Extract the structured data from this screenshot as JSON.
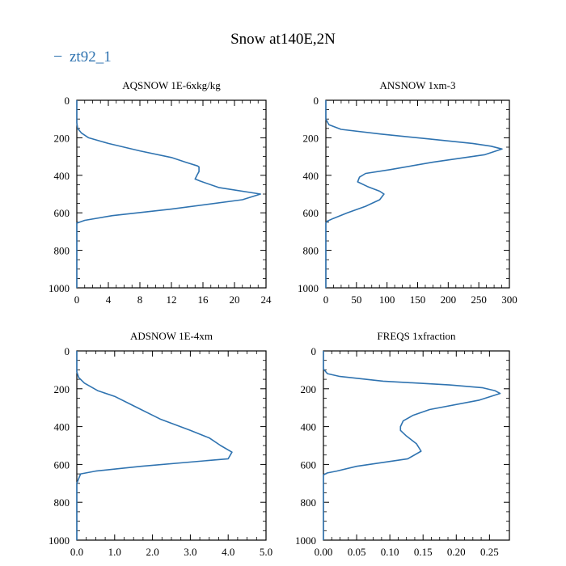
{
  "figure": {
    "title": "Snow at140E,2N",
    "legend_label": "zt92_1",
    "legend_dash": "−",
    "line_color": "#2f73b0"
  },
  "chart_data": [
    {
      "type": "line",
      "title": "AQSNOW  1E-6xkg/kg",
      "xlim": [
        0,
        24
      ],
      "ylim": [
        1000,
        0
      ],
      "xticks": [
        "0",
        "4",
        "8",
        "12",
        "16",
        "20",
        "24"
      ],
      "yticks": [
        "0",
        "200",
        "400",
        "600",
        "800",
        "1000"
      ],
      "series": [
        {
          "name": "zt92_1",
          "x": [
            0,
            0,
            0.1,
            0.6,
            1.5,
            4,
            8,
            12,
            13.8,
            15.3,
            15.5,
            15.5,
            15.3,
            15.0,
            15.6,
            18,
            23.3,
            21,
            12,
            4.5,
            1.0,
            0,
            0
          ],
          "y": [
            0,
            120,
            150,
            175,
            200,
            230,
            270,
            305,
            330,
            350,
            355,
            380,
            395,
            420,
            430,
            465,
            500,
            530,
            580,
            615,
            640,
            655,
            1000
          ]
        }
      ]
    },
    {
      "type": "line",
      "title": "ANSNOW  1xm-3",
      "xlim": [
        0,
        300
      ],
      "xtick_vals": [
        0,
        50,
        100,
        150,
        200,
        250,
        300
      ],
      "ylim": [
        1000,
        0
      ],
      "xticks": [
        "0",
        "50",
        "100",
        "150",
        "200",
        "250",
        "300"
      ],
      "yticks": [
        "0",
        "200",
        "400",
        "600",
        "800",
        "1000"
      ],
      "series": [
        {
          "name": "zt92_1",
          "x": [
            0,
            0,
            5,
            25,
            90,
            165,
            240,
            270,
            288,
            260,
            175,
            105,
            65,
            55,
            52,
            68,
            88,
            95,
            88,
            65,
            35,
            12,
            2,
            0,
            0
          ],
          "y": [
            0,
            100,
            130,
            155,
            180,
            205,
            230,
            245,
            260,
            290,
            330,
            370,
            390,
            410,
            435,
            460,
            485,
            500,
            530,
            565,
            600,
            630,
            645,
            655,
            1000
          ]
        }
      ]
    },
    {
      "type": "line",
      "title": "ADSNOW  1E-4xm",
      "xlim": [
        0,
        5
      ],
      "ylim": [
        1000,
        0
      ],
      "xticks": [
        "0.0",
        "1.0",
        "2.0",
        "3.0",
        "4.0",
        "5.0"
      ],
      "yticks": [
        "0",
        "200",
        "400",
        "600",
        "800",
        "1000"
      ],
      "series": [
        {
          "name": "zt92_1",
          "x": [
            0,
            0,
            0.05,
            0.2,
            0.55,
            1.0,
            1.5,
            2.2,
            3.0,
            3.5,
            3.8,
            4.1,
            4.0,
            1.7,
            0.5,
            0.1,
            0,
            0
          ],
          "y": [
            0,
            110,
            140,
            170,
            210,
            240,
            290,
            360,
            420,
            460,
            500,
            535,
            570,
            610,
            635,
            650,
            700,
            1000
          ]
        }
      ]
    },
    {
      "type": "line",
      "title": "FREQS  1xfraction",
      "xlim": [
        0,
        0.28
      ],
      "xtick_vals": [
        0,
        0.05,
        0.1,
        0.15,
        0.2,
        0.25
      ],
      "ylim": [
        1000,
        0
      ],
      "xticks": [
        "0.00",
        "0.05",
        "0.10",
        "0.15",
        "0.20",
        "0.25"
      ],
      "yticks": [
        "0",
        "200",
        "400",
        "600",
        "800",
        "1000"
      ],
      "series": [
        {
          "name": "zt92_1",
          "x": [
            0,
            0,
            0.006,
            0.025,
            0.09,
            0.19,
            0.24,
            0.258,
            0.266,
            0.235,
            0.16,
            0.135,
            0.12,
            0.116,
            0.116,
            0.125,
            0.14,
            0.147,
            0.127,
            0.05,
            0.02,
            0.006,
            0,
            0
          ],
          "y": [
            0,
            95,
            120,
            135,
            160,
            180,
            195,
            210,
            225,
            260,
            310,
            340,
            370,
            400,
            420,
            450,
            490,
            530,
            570,
            610,
            635,
            645,
            655,
            1000
          ]
        }
      ]
    }
  ]
}
